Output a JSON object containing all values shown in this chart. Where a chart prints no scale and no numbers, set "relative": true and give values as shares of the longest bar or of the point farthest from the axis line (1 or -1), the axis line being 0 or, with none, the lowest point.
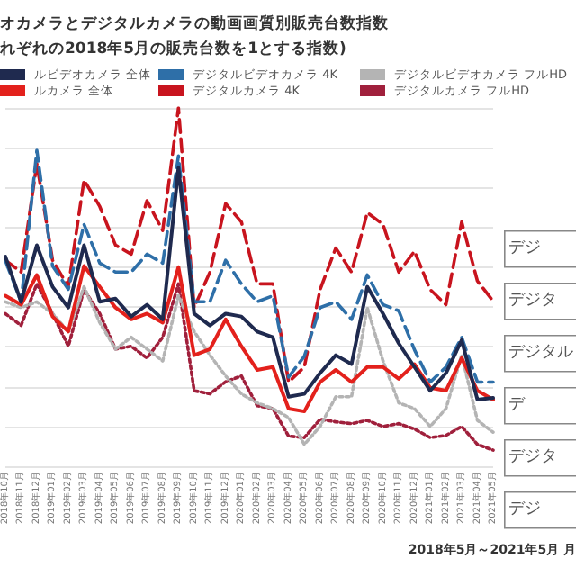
{
  "chart_data": {
    "type": "line",
    "title": "オカメラとデジタルカメラの動画画質別販売台数指数",
    "subtitle": "れぞれの2018年5月の販売台数を1とする指数)",
    "relative": true,
    "grid": "y",
    "legend": "top",
    "categories": [
      "2018年10月",
      "2018年11月",
      "2018年12月",
      "2019年01月",
      "2019年02月",
      "2019年03月",
      "2019年04月",
      "2019年05月",
      "2019年06月",
      "2019年07月",
      "2019年08月",
      "2019年09月",
      "2019年10月",
      "2019年11月",
      "2019年12月",
      "2020年01月",
      "2020年02月",
      "2020年03月",
      "2020年04月",
      "2020年05月",
      "2020年06月",
      "2020年07月",
      "2020年08月",
      "2020年09月",
      "2020年10月",
      "2020年11月",
      "2020年12月",
      "2021年01月",
      "2021年02月",
      "2021年03月",
      "2021年04月",
      "2021年05月"
    ],
    "annotations": [
      "2018年5月～2021年5月 月",
      "デジ",
      "デジタ",
      "デジタル",
      "デ",
      "デジタ",
      "デジ"
    ],
    "series": [
      {
        "name": "ルビデオカメラ 全体",
        "color": "#1f2a4f",
        "line_style": "solid",
        "values": [
          0.585,
          0.459,
          0.617,
          0.501,
          0.443,
          0.617,
          0.459,
          0.468,
          0.418,
          0.451,
          0.41,
          0.833,
          0.426,
          0.393,
          0.426,
          0.418,
          0.376,
          0.36,
          0.194,
          0.202,
          0.26,
          0.31,
          0.285,
          0.501,
          0.426,
          0.343,
          0.277,
          0.211,
          0.26,
          0.352,
          0.186,
          0.191
        ]
      },
      {
        "name": "ルカメラ 全体",
        "color": "#e3211c",
        "line_style": "solid",
        "values": [
          0.476,
          0.451,
          0.534,
          0.418,
          0.376,
          0.559,
          0.501,
          0.443,
          0.41,
          0.426,
          0.401,
          0.556,
          0.31,
          0.327,
          0.41,
          0.335,
          0.269,
          0.277,
          0.161,
          0.153,
          0.235,
          0.269,
          0.235,
          0.277,
          0.277,
          0.244,
          0.285,
          0.219,
          0.211,
          0.302,
          0.211,
          0.186
        ]
      },
      {
        "name": "デジタルビデオカメラ 4K",
        "color": "#2e6fa8",
        "line_style": "dashed",
        "values": [
          0.574,
          0.459,
          0.882,
          0.559,
          0.494,
          0.675,
          0.567,
          0.542,
          0.542,
          0.592,
          0.567,
          0.866,
          0.459,
          0.459,
          0.575,
          0.509,
          0.459,
          0.476,
          0.249,
          0.307,
          0.443,
          0.459,
          0.41,
          0.534,
          0.451,
          0.434,
          0.325,
          0.235,
          0.277,
          0.36,
          0.235,
          0.235
        ]
      },
      {
        "name": "デジタルカメラ 4K",
        "color": "#c8141e",
        "line_style": "dashed",
        "values": [
          0.575,
          0.542,
          0.844,
          0.575,
          0.501,
          0.799,
          0.725,
          0.617,
          0.592,
          0.741,
          0.658,
          1,
          0.443,
          0.542,
          0.733,
          0.682,
          0.509,
          0.509,
          0.235,
          0.277,
          0.493,
          0.609,
          0.542,
          0.708,
          0.675,
          0.542,
          0.6,
          0.493,
          0.451,
          0.682,
          0.517,
          0.461
        ]
      },
      {
        "name": "デジタルビデオカメラ フルHD",
        "color": "#b4b4b4",
        "line_style": "dotted",
        "values": [
          0.459,
          0.443,
          0.459,
          0.426,
          0.376,
          0.501,
          0.401,
          0.327,
          0.36,
          0.327,
          0.294,
          0.476,
          0.376,
          0.31,
          0.252,
          0.202,
          0.177,
          0.161,
          0.136,
          0.061,
          0.111,
          0.194,
          0.194,
          0.443,
          0.294,
          0.177,
          0.161,
          0.111,
          0.161,
          0.31,
          0.128,
          0.095
        ]
      },
      {
        "name": "デジタルカメラ フルHD",
        "color": "#a0203c",
        "line_style": "dotted",
        "values": [
          0.426,
          0.393,
          0.509,
          0.426,
          0.335,
          0.493,
          0.426,
          0.327,
          0.335,
          0.302,
          0.36,
          0.509,
          0.211,
          0.202,
          0.236,
          0.252,
          0.169,
          0.161,
          0.084,
          0.08,
          0.131,
          0.124,
          0.119,
          0.128,
          0.111,
          0.119,
          0.104,
          0.08,
          0.086,
          0.111,
          0.061,
          0.045
        ]
      }
    ]
  }
}
